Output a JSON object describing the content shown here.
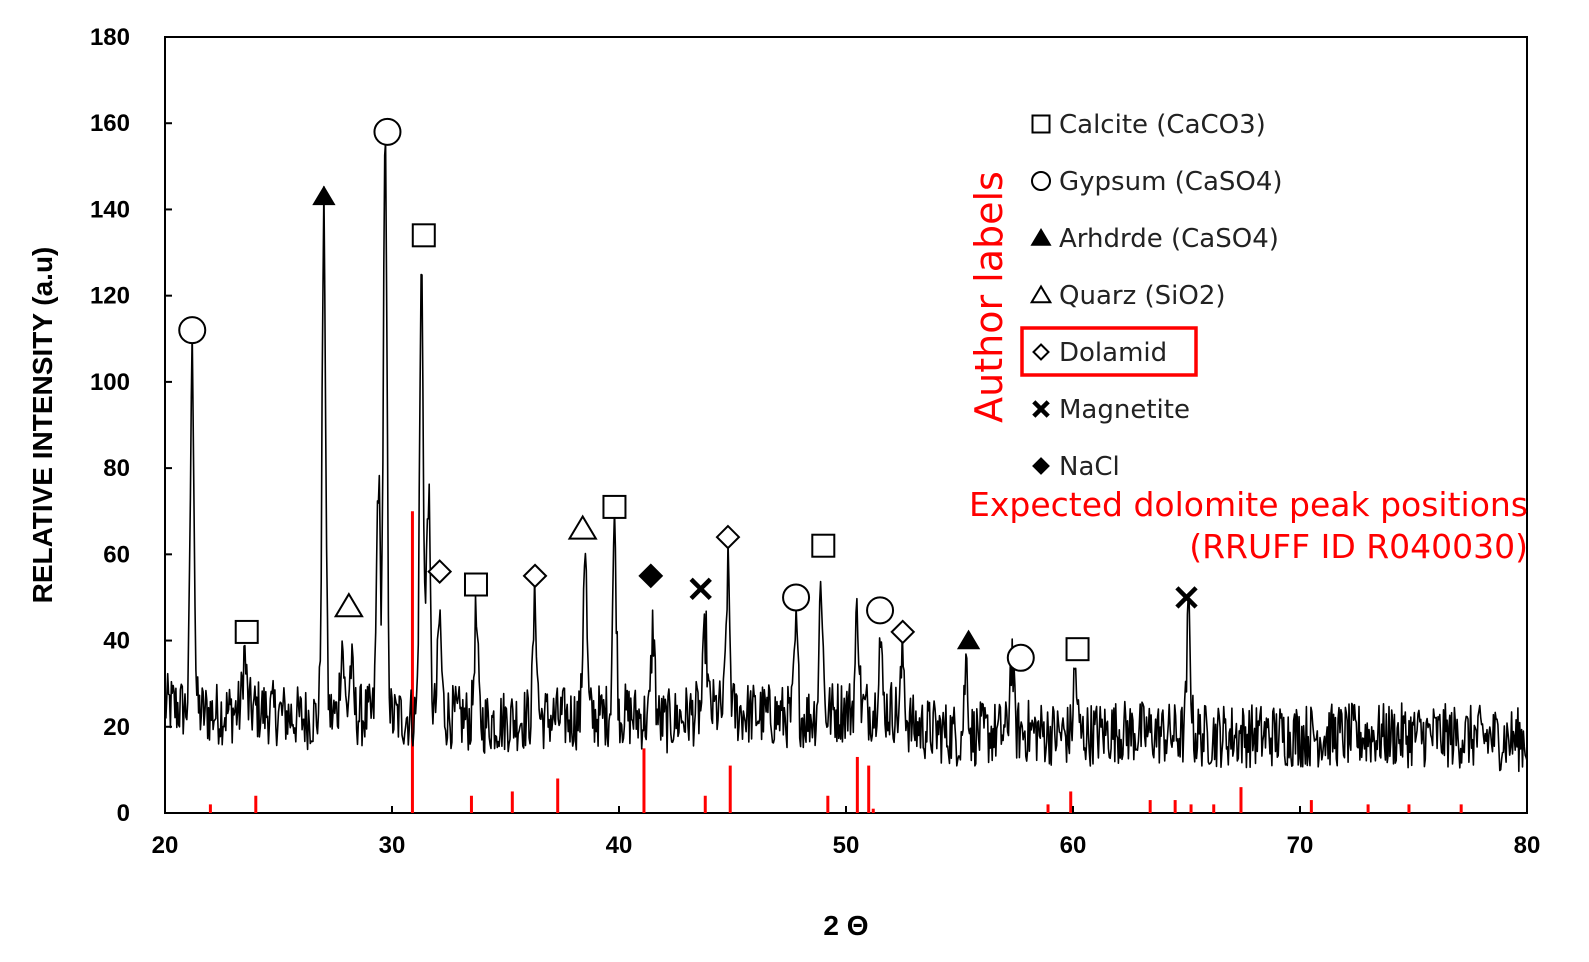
{
  "chart_data": {
    "type": "line",
    "xlabel": "2 Θ",
    "ylabel": "RELATIVE INTENSITY (a.u)",
    "xlim": [
      20,
      80
    ],
    "ylim": [
      0,
      180
    ],
    "xticks": [
      "20",
      "30",
      "40",
      "50",
      "60",
      "70",
      "80"
    ],
    "yticks": [
      "0",
      "20",
      "40",
      "60",
      "80",
      "100",
      "120",
      "140",
      "160",
      "180"
    ],
    "grid": false,
    "legend_position": "top-right",
    "series": [
      {
        "type": "line",
        "color": "#000000",
        "baseline": [
          [
            20,
            25
          ],
          [
            22,
            23
          ],
          [
            24,
            24
          ],
          [
            26,
            22
          ],
          [
            28,
            23
          ],
          [
            30,
            22
          ],
          [
            32,
            23
          ],
          [
            34,
            21
          ],
          [
            36,
            22
          ],
          [
            38,
            22
          ],
          [
            40,
            23
          ],
          [
            42,
            21
          ],
          [
            44,
            24
          ],
          [
            46,
            23
          ],
          [
            48,
            22
          ],
          [
            50,
            24
          ],
          [
            52,
            24
          ],
          [
            53,
            20
          ],
          [
            55,
            18
          ],
          [
            58,
            19
          ],
          [
            60,
            18
          ],
          [
            62,
            19
          ],
          [
            65,
            18
          ],
          [
            68,
            18
          ],
          [
            70,
            18
          ],
          [
            73,
            18
          ],
          [
            76,
            18
          ],
          [
            80,
            17
          ]
        ],
        "peaks": [
          [
            21.2,
            107
          ],
          [
            23.5,
            37
          ],
          [
            27.0,
            138
          ],
          [
            27.8,
            40
          ],
          [
            28.2,
            34
          ],
          [
            29.4,
            78
          ],
          [
            29.7,
            153
          ],
          [
            31.3,
            126
          ],
          [
            31.6,
            75
          ],
          [
            32.1,
            45
          ],
          [
            33.7,
            45
          ],
          [
            36.3,
            49
          ],
          [
            38.5,
            63
          ],
          [
            39.8,
            66
          ],
          [
            41.5,
            43
          ],
          [
            43.8,
            42
          ],
          [
            44.8,
            56
          ],
          [
            47.8,
            42
          ],
          [
            48.9,
            54
          ],
          [
            50.5,
            47
          ],
          [
            51.5,
            40
          ],
          [
            52.5,
            36
          ],
          [
            55.3,
            35
          ],
          [
            57.3,
            37
          ],
          [
            60.1,
            33
          ],
          [
            65.1,
            47
          ]
        ]
      },
      {
        "name": "Expected dolomite peak positions (RRUFF ID R040030)",
        "type": "stick",
        "color": "#ff0000",
        "points": [
          [
            22.0,
            2
          ],
          [
            24.0,
            4
          ],
          [
            30.9,
            70
          ],
          [
            33.5,
            4
          ],
          [
            35.3,
            5
          ],
          [
            37.3,
            8
          ],
          [
            41.1,
            15
          ],
          [
            43.8,
            4
          ],
          [
            44.9,
            11
          ],
          [
            49.2,
            4
          ],
          [
            50.5,
            13
          ],
          [
            51.0,
            11
          ],
          [
            51.2,
            1
          ],
          [
            58.9,
            2
          ],
          [
            59.9,
            5
          ],
          [
            63.4,
            3
          ],
          [
            64.5,
            3
          ],
          [
            65.2,
            2
          ],
          [
            66.2,
            2
          ],
          [
            67.4,
            6
          ],
          [
            70.5,
            3
          ],
          [
            73.0,
            2
          ],
          [
            74.8,
            2
          ],
          [
            77.1,
            2
          ]
        ]
      }
    ],
    "markers": [
      {
        "symbol": "circle",
        "x": 21.2,
        "y": 112
      },
      {
        "symbol": "square",
        "x": 23.6,
        "y": 42
      },
      {
        "symbol": "triangle-filled",
        "x": 27.0,
        "y": 143
      },
      {
        "symbol": "triangle",
        "x": 28.1,
        "y": 48
      },
      {
        "symbol": "circle",
        "x": 29.8,
        "y": 158
      },
      {
        "symbol": "square",
        "x": 31.4,
        "y": 134
      },
      {
        "symbol": "diamond",
        "x": 32.1,
        "y": 56
      },
      {
        "symbol": "square",
        "x": 33.7,
        "y": 53
      },
      {
        "symbol": "diamond",
        "x": 36.3,
        "y": 55
      },
      {
        "symbol": "triangle",
        "x": 38.4,
        "y": 66
      },
      {
        "symbol": "square",
        "x": 39.8,
        "y": 71
      },
      {
        "symbol": "diamond-filled",
        "x": 41.4,
        "y": 55
      },
      {
        "symbol": "x",
        "x": 43.6,
        "y": 52
      },
      {
        "symbol": "diamond",
        "x": 44.8,
        "y": 64
      },
      {
        "symbol": "circle",
        "x": 47.8,
        "y": 50
      },
      {
        "symbol": "square",
        "x": 49.0,
        "y": 62
      },
      {
        "symbol": "circle",
        "x": 51.5,
        "y": 47
      },
      {
        "symbol": "diamond",
        "x": 52.5,
        "y": 42
      },
      {
        "symbol": "triangle-filled",
        "x": 55.4,
        "y": 40
      },
      {
        "symbol": "circle",
        "x": 57.7,
        "y": 36
      },
      {
        "symbol": "square",
        "x": 60.2,
        "y": 38
      },
      {
        "symbol": "x",
        "x": 65.0,
        "y": 50
      }
    ]
  },
  "legend": [
    {
      "symbol": "square",
      "label": "Calcite (CaCO3)"
    },
    {
      "symbol": "circle",
      "label": "Gypsum (CaSO4)"
    },
    {
      "symbol": "triangle-filled",
      "label": "Arhdrde (CaSO4)"
    },
    {
      "symbol": "triangle",
      "label": "Quarz (SiO2)"
    },
    {
      "symbol": "diamond",
      "label": "Dolamid",
      "highlighted": true
    },
    {
      "symbol": "x",
      "label": "Magnetite"
    },
    {
      "symbol": "diamond-filled",
      "label": "NaCl"
    }
  ],
  "annotations": {
    "author_labels": "Author labels",
    "expected_line1": "Expected dolomite peak positions",
    "expected_line2": "(RRUFF ID R040030)",
    "color": "#ff0000"
  }
}
